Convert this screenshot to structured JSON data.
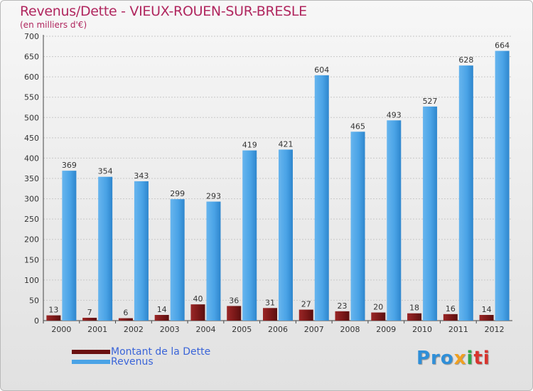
{
  "title": "Revenus/Dette - VIEUX-ROUEN-SUR-BRESLE",
  "subtitle": "(en milliers d'€)",
  "colors": {
    "title": "#b0265e",
    "debt": "#7a1818",
    "revenue": "#4aa3e6",
    "legend_text": "#3a64d8"
  },
  "legend": {
    "debt_label": "Montant de la Dette",
    "revenue_label": "Revenus"
  },
  "logo": {
    "parts": [
      "Pro",
      "x",
      "i",
      "ti"
    ]
  },
  "chart_data": {
    "type": "bar",
    "title": "Revenus/Dette - VIEUX-ROUEN-SUR-BRESLE",
    "subtitle": "(en milliers d'€)",
    "xlabel": "",
    "ylabel": "",
    "categories": [
      "2000",
      "2001",
      "2002",
      "2003",
      "2004",
      "2005",
      "2006",
      "2007",
      "2008",
      "2009",
      "2010",
      "2011",
      "2012"
    ],
    "series": [
      {
        "name": "Montant de la Dette",
        "values": [
          13,
          7,
          6,
          14,
          40,
          36,
          31,
          27,
          23,
          20,
          18,
          16,
          14
        ]
      },
      {
        "name": "Revenus",
        "values": [
          369,
          354,
          343,
          299,
          293,
          419,
          421,
          604,
          465,
          493,
          527,
          628,
          664
        ]
      }
    ],
    "ylim": [
      0,
      700
    ],
    "yticks": [
      0,
      50,
      100,
      150,
      200,
      250,
      300,
      350,
      400,
      450,
      500,
      550,
      600,
      650,
      700
    ],
    "grid": true,
    "legend_position": "bottom-left"
  }
}
